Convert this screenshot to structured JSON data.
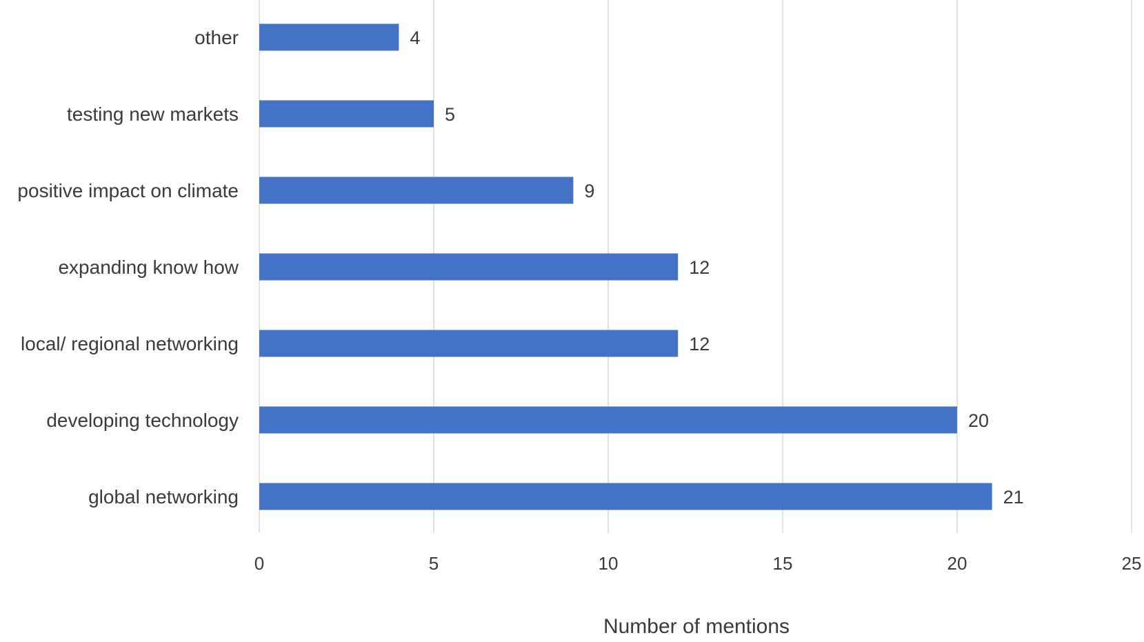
{
  "chart_data": {
    "type": "bar",
    "orientation": "horizontal",
    "title": "",
    "xlabel": "Number of mentions",
    "ylabel": "",
    "categories": [
      "other",
      "testing new markets",
      "positive impact on climate",
      "expanding know how",
      "local/ regional networking",
      "developing technology",
      "global networking"
    ],
    "values": [
      4,
      5,
      9,
      12,
      12,
      20,
      21
    ],
    "xlim": [
      0,
      25
    ],
    "x_ticks": [
      0,
      5,
      10,
      15,
      20,
      25
    ],
    "grid": true,
    "legend": "none",
    "data_labels": true,
    "colors": {
      "bar": "#4472C4",
      "grid": "#d9d9d9",
      "text": "#3a3a3a"
    }
  }
}
